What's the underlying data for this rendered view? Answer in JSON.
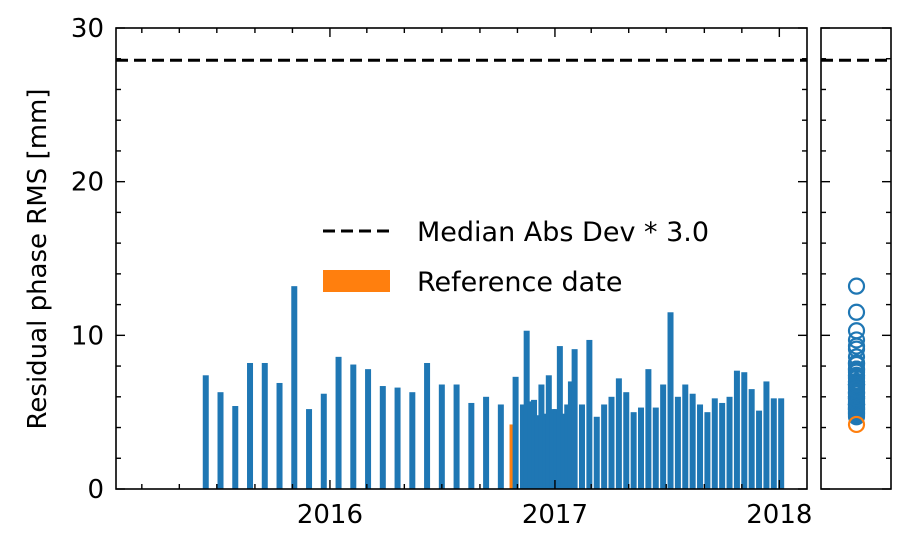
{
  "chart_data": {
    "type": "bar",
    "ylabel": "Residual phase RMS [mm]",
    "ylim": [
      0,
      30
    ],
    "yticks": [
      0,
      10,
      20,
      30
    ],
    "xlim": [
      "2015-01-18",
      "2018-02-15"
    ],
    "xticks": [
      {
        "date": "2016-01-01",
        "label": "2016"
      },
      {
        "date": "2017-01-01",
        "label": "2017"
      },
      {
        "date": "2018-01-01",
        "label": "2018"
      }
    ],
    "threshold": {
      "value": 27.9,
      "label": "Median Abs Dev * 3.0",
      "style": "dashed",
      "color": "#000000"
    },
    "reference_date": {
      "date": "2016-10-24",
      "value": 4.2,
      "label": "Reference date",
      "color": "#ff7f0e"
    },
    "bar_color": "#1f77b4",
    "series": [
      {
        "dates": [
          "2015-06-13",
          "2015-07-07",
          "2015-07-31",
          "2015-08-24",
          "2015-09-17",
          "2015-10-11",
          "2015-11-04",
          "2015-11-28",
          "2015-12-22",
          "2016-01-15",
          "2016-02-08",
          "2016-03-03",
          "2016-03-27",
          "2016-04-20",
          "2016-05-14",
          "2016-06-07",
          "2016-07-01",
          "2016-07-25",
          "2016-08-18",
          "2016-09-11",
          "2016-10-05",
          "2016-10-24",
          "2016-10-29",
          "2016-11-10",
          "2016-11-16",
          "2016-11-22",
          "2016-11-28",
          "2016-12-04",
          "2016-12-10",
          "2016-12-16",
          "2016-12-22",
          "2016-12-28",
          "2017-01-03",
          "2017-01-09",
          "2017-01-15",
          "2017-01-21",
          "2017-01-27",
          "2017-02-02",
          "2017-02-14",
          "2017-02-26",
          "2017-03-10",
          "2017-03-22",
          "2017-04-03",
          "2017-04-15",
          "2017-04-27",
          "2017-05-09",
          "2017-05-21",
          "2017-06-02",
          "2017-06-14",
          "2017-06-26",
          "2017-07-08",
          "2017-07-20",
          "2017-08-01",
          "2017-08-13",
          "2017-08-25",
          "2017-09-06",
          "2017-09-18",
          "2017-09-30",
          "2017-10-12",
          "2017-10-24",
          "2017-11-05",
          "2017-11-17",
          "2017-11-29",
          "2017-12-11",
          "2017-12-23",
          "2018-01-04"
        ],
        "values": [
          7.4,
          6.3,
          5.4,
          8.2,
          8.2,
          6.9,
          13.2,
          5.2,
          6.2,
          8.6,
          8.1,
          7.8,
          6.7,
          6.6,
          6.3,
          8.2,
          6.8,
          6.8,
          5.6,
          6.0,
          5.5,
          4.2,
          7.3,
          5.5,
          10.3,
          5.7,
          5.8,
          4.8,
          6.8,
          4.9,
          7.4,
          5.2,
          5.2,
          9.3,
          4.9,
          5.5,
          7.0,
          9.1,
          5.5,
          9.7,
          4.7,
          5.5,
          6.0,
          7.2,
          6.3,
          5.0,
          5.3,
          7.8,
          5.3,
          6.8,
          11.5,
          6.0,
          6.8,
          6.2,
          5.5,
          5.0,
          5.9,
          5.6,
          6.0,
          7.7,
          7.6,
          6.5,
          5.1,
          7.0,
          5.9,
          5.9
        ]
      }
    ],
    "side_panel": {
      "type": "scatter",
      "ylim": [
        0,
        30
      ],
      "marker": "open-circle"
    },
    "legend": {
      "placement": "center",
      "entries": [
        "Median Abs Dev * 3.0",
        "Reference date"
      ]
    }
  }
}
